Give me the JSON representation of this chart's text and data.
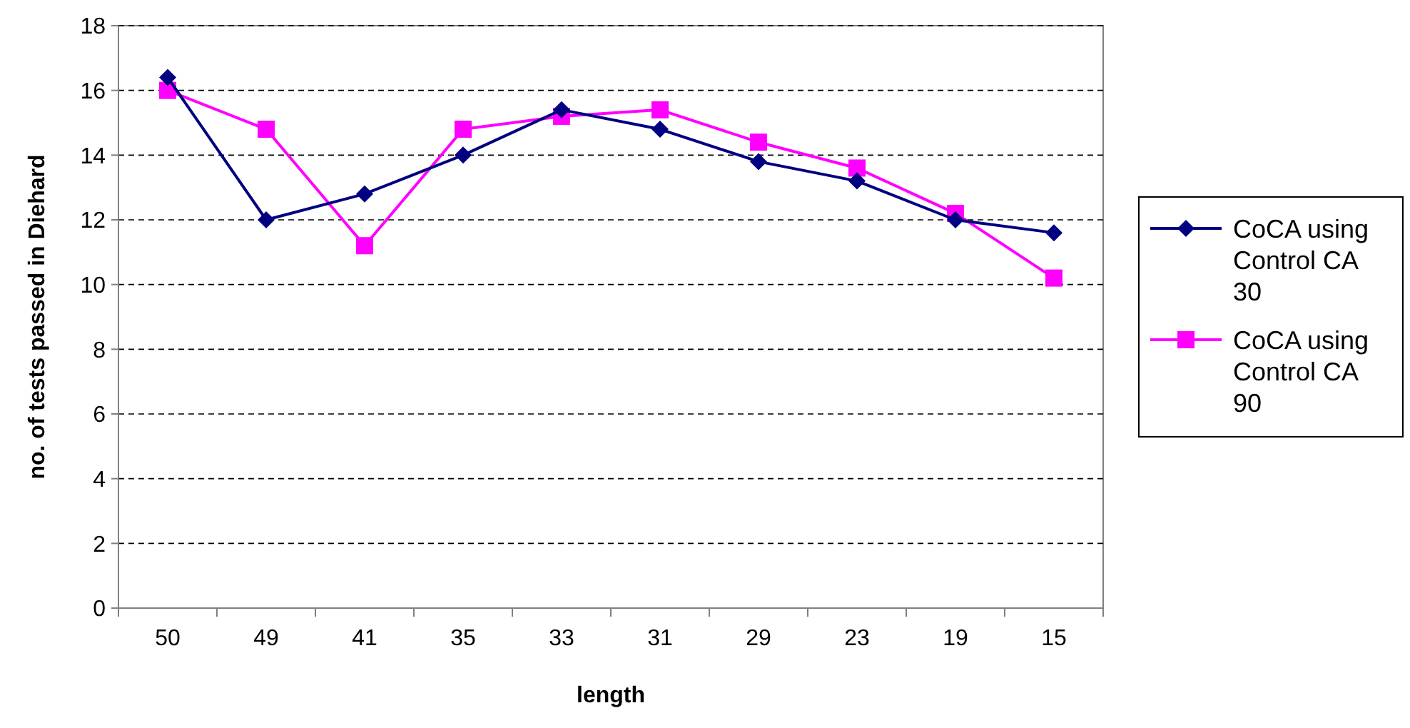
{
  "chart_data": {
    "type": "line",
    "xlabel": "length",
    "ylabel": "no. of tests passed in Diehard",
    "categories": [
      "50",
      "49",
      "41",
      "35",
      "33",
      "31",
      "29",
      "23",
      "19",
      "15"
    ],
    "series": [
      {
        "name": "CoCA using Control CA 30",
        "color": "#000080",
        "marker": "diamond",
        "values": [
          16.4,
          12.0,
          12.8,
          14.0,
          15.4,
          14.8,
          13.8,
          13.2,
          12.0,
          11.6
        ]
      },
      {
        "name": "CoCA using Control CA 90",
        "color": "#ff00ff",
        "marker": "square",
        "values": [
          16.0,
          14.8,
          11.2,
          14.8,
          15.2,
          15.4,
          14.4,
          13.6,
          12.2,
          10.2
        ]
      }
    ],
    "ylim": [
      0,
      18
    ],
    "yticks": [
      0,
      2,
      4,
      6,
      8,
      10,
      12,
      14,
      16,
      18
    ],
    "grid": "y",
    "legend": "right"
  }
}
